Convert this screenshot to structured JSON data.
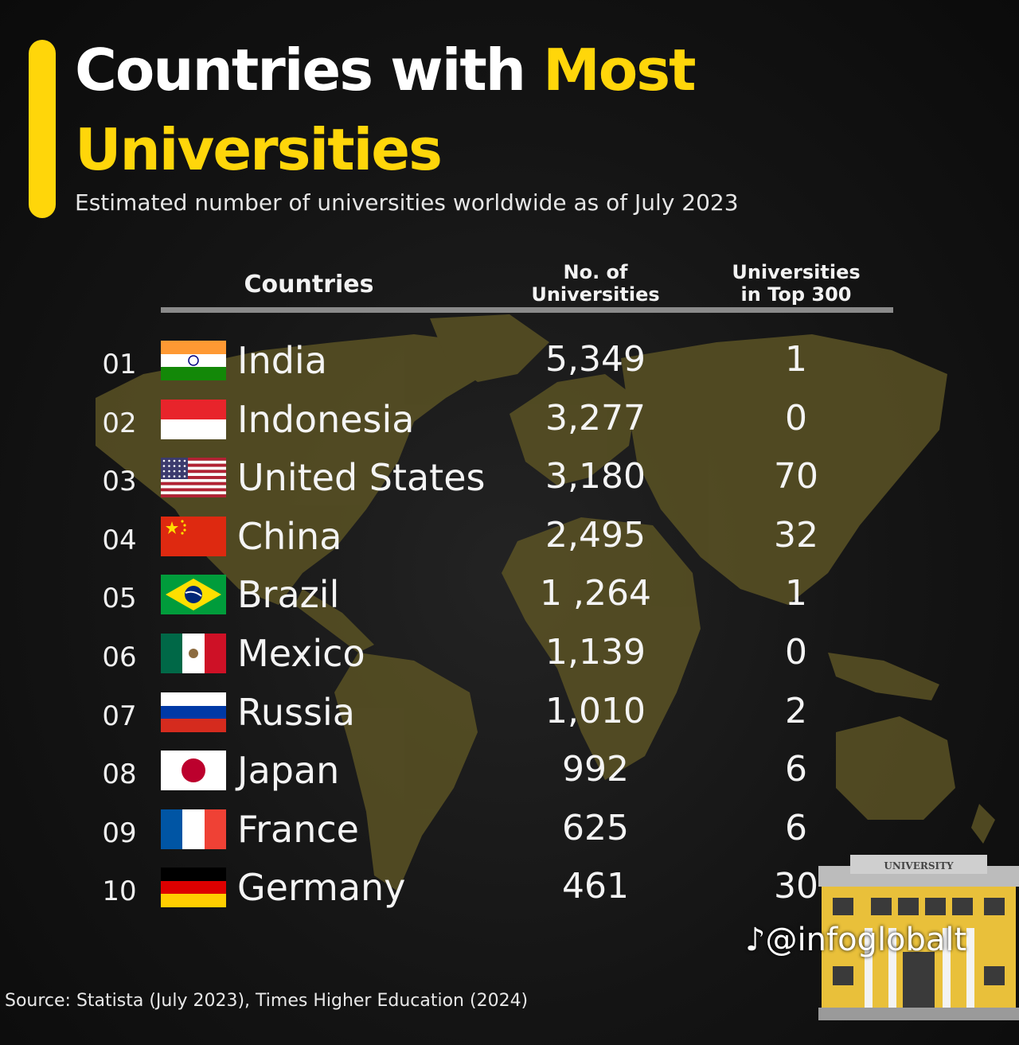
{
  "title_part1": "Countries with ",
  "title_part2": "Most",
  "title_part3": "Universities",
  "subtitle": "Estimated number of universities worldwide as of July 2023",
  "colors": {
    "accent": "#ffd60a",
    "background": "#141414",
    "map": "#5a5224"
  },
  "chart_data": {
    "type": "table",
    "columns": [
      "Countries",
      "No. of Universities",
      "Universities in Top 300"
    ],
    "rows": [
      {
        "rank": "01",
        "country": "India",
        "flag": "india-flag-icon",
        "universities": "5,349",
        "top300": "1"
      },
      {
        "rank": "02",
        "country": "Indonesia",
        "flag": "indonesia-flag-icon",
        "universities": "3,277",
        "top300": "0"
      },
      {
        "rank": "03",
        "country": "United States",
        "flag": "usa-flag-icon",
        "universities": "3,180",
        "top300": "70"
      },
      {
        "rank": "04",
        "country": "China",
        "flag": "china-flag-icon",
        "universities": "2,495",
        "top300": "32"
      },
      {
        "rank": "05",
        "country": "Brazil",
        "flag": "brazil-flag-icon",
        "universities": "1 ,264",
        "top300": "1"
      },
      {
        "rank": "06",
        "country": "Mexico",
        "flag": "mexico-flag-icon",
        "universities": "1,139",
        "top300": "0"
      },
      {
        "rank": "07",
        "country": "Russia",
        "flag": "russia-flag-icon",
        "universities": "1,010",
        "top300": "2"
      },
      {
        "rank": "08",
        "country": "Japan",
        "flag": "japan-flag-icon",
        "universities": "992",
        "top300": "6"
      },
      {
        "rank": "09",
        "country": "France",
        "flag": "france-flag-icon",
        "universities": "625",
        "top300": "6"
      },
      {
        "rank": "10",
        "country": "Germany",
        "flag": "germany-flag-icon",
        "universities": "461",
        "top300": "30"
      }
    ]
  },
  "headers": {
    "countries": "Countries",
    "num_line1": "No. of",
    "num_line2": "Universities",
    "top_line1": "Universities",
    "top_line2": "in Top 300"
  },
  "source": "Source: Statista (July 2023), Times Higher Education (2024)",
  "watermark": "@infoglobalt",
  "building_sign": "UNIVERSITY"
}
